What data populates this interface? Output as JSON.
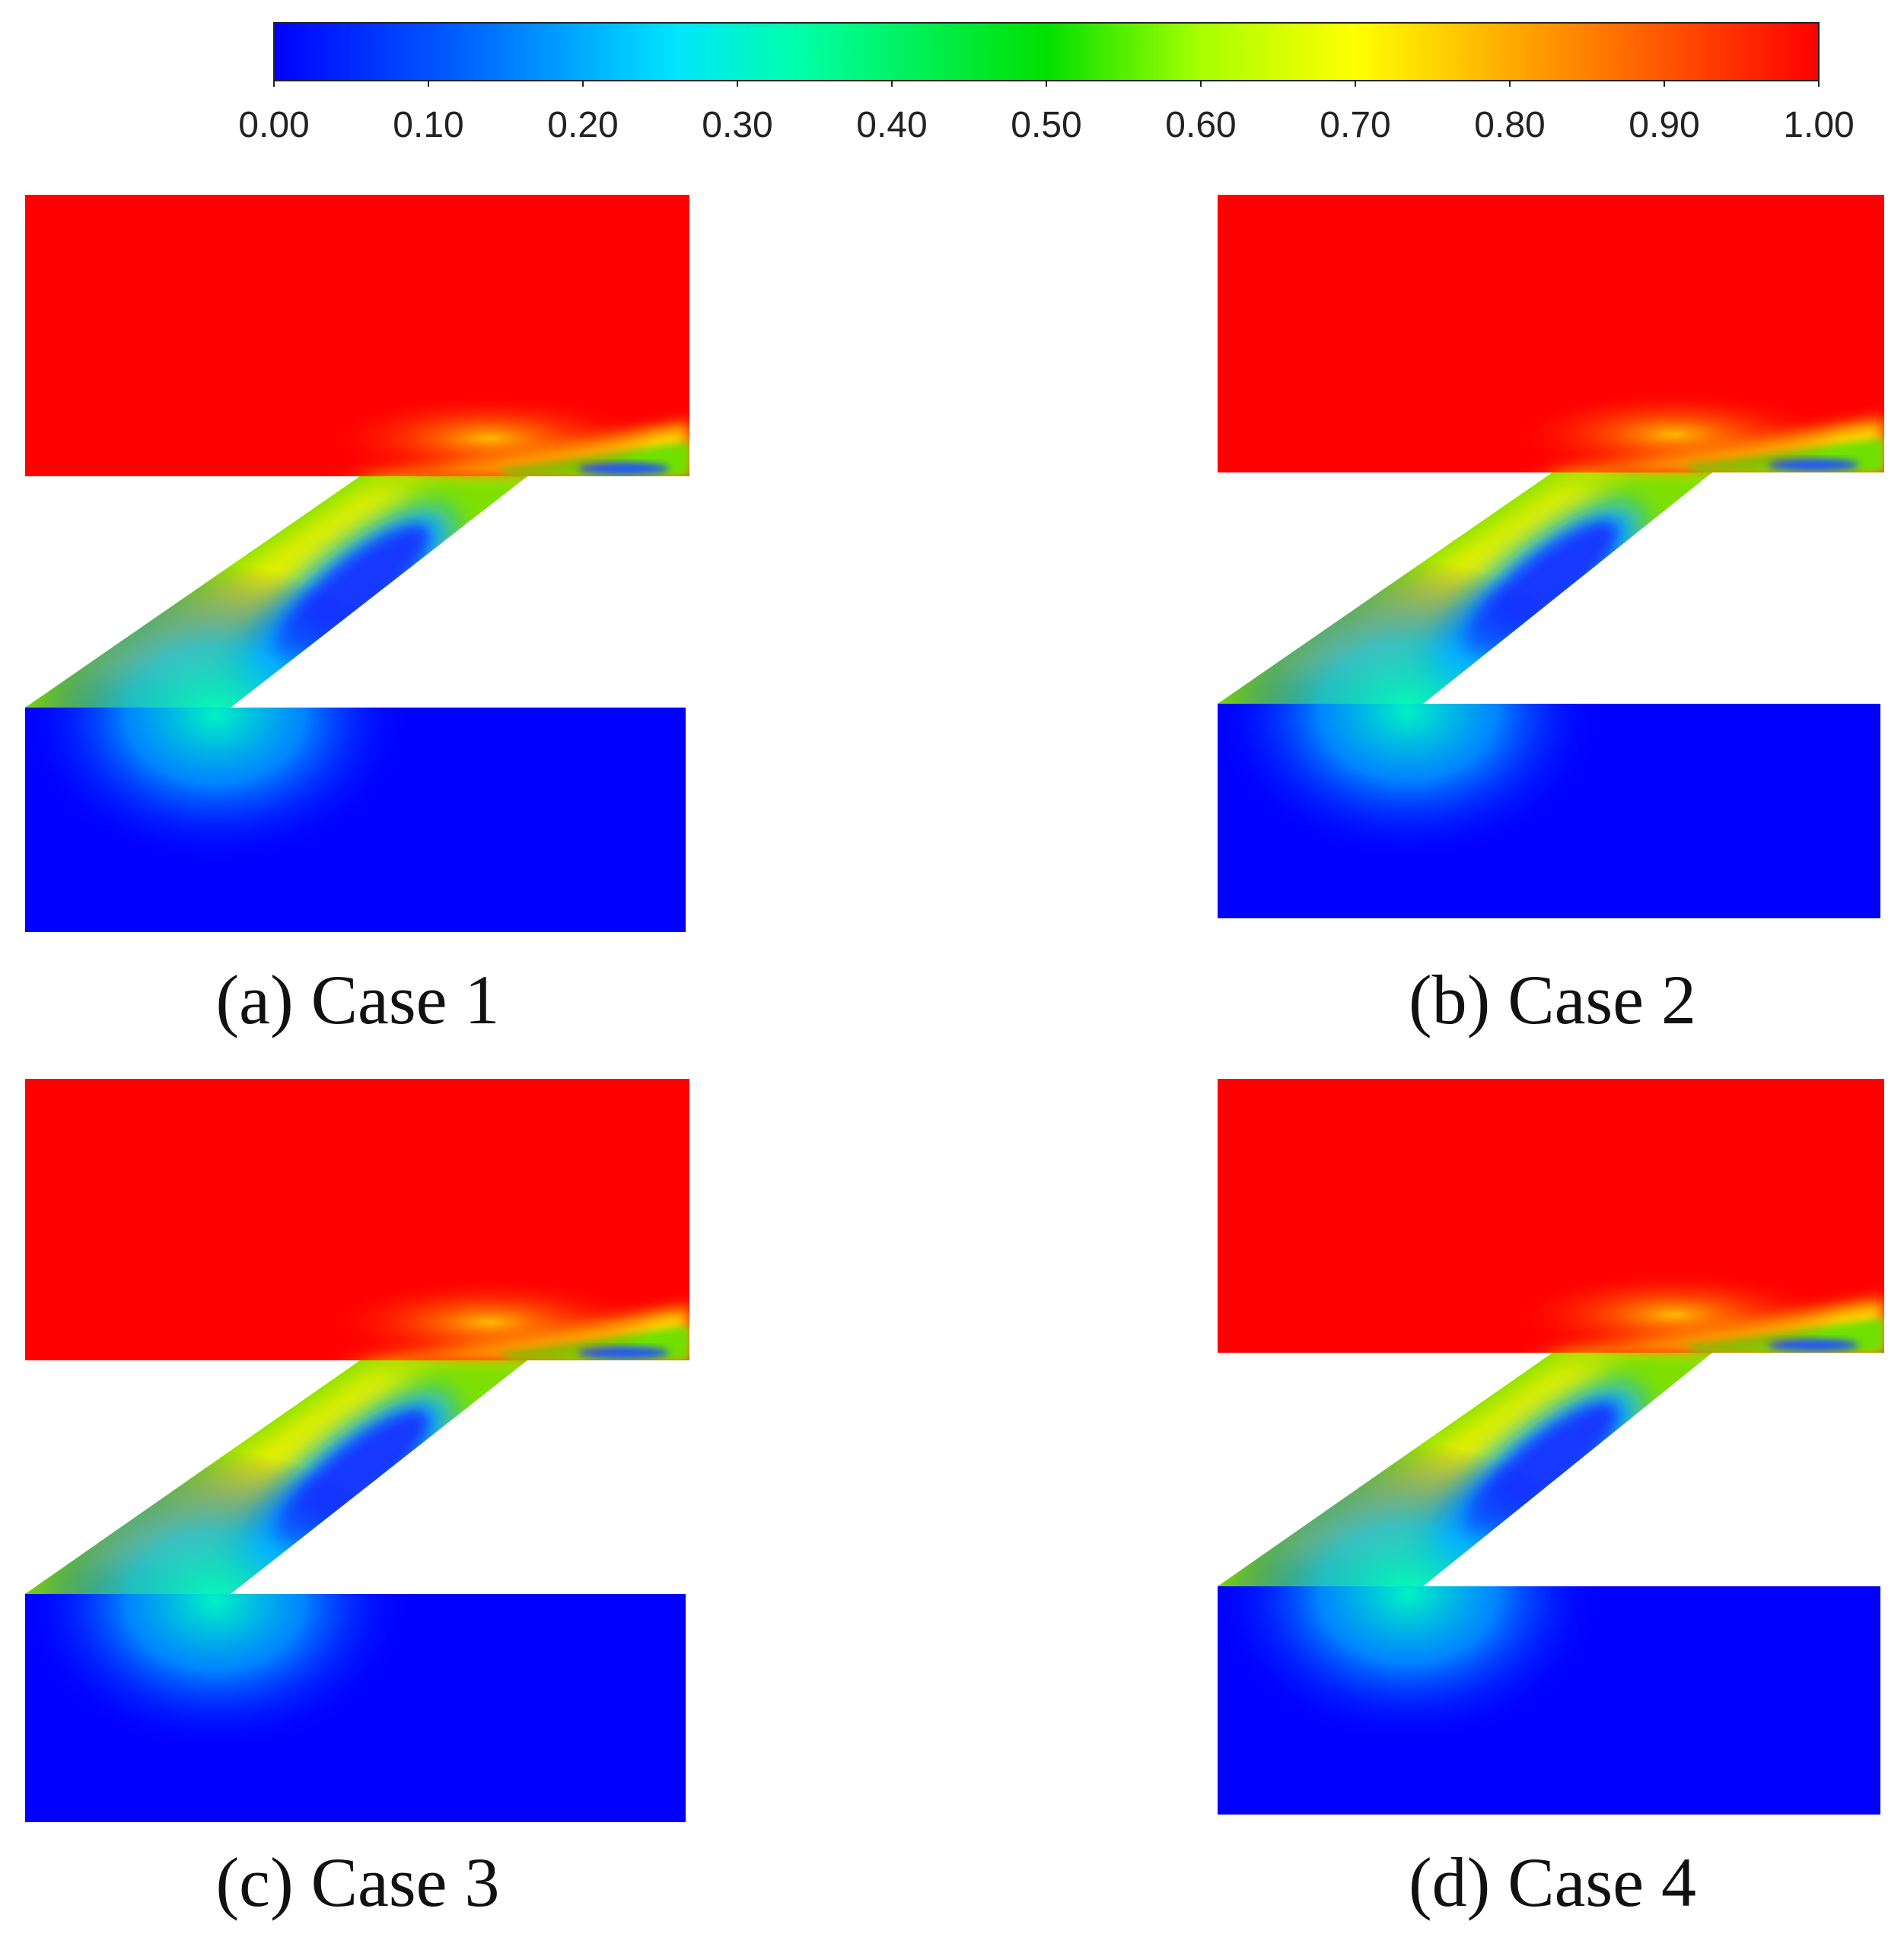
{
  "colorbar": {
    "min": 0.0,
    "max": 1.0,
    "stops": [
      {
        "offset": 0.0,
        "color": "#0000ff"
      },
      {
        "offset": 0.12,
        "color": "#0060ff"
      },
      {
        "offset": 0.26,
        "color": "#00e5ff"
      },
      {
        "offset": 0.34,
        "color": "#00ffa8"
      },
      {
        "offset": 0.5,
        "color": "#00e000"
      },
      {
        "offset": 0.6,
        "color": "#a8ff00"
      },
      {
        "offset": 0.7,
        "color": "#ffff00"
      },
      {
        "offset": 0.82,
        "color": "#ff9a00"
      },
      {
        "offset": 1.0,
        "color": "#ff0000"
      }
    ],
    "ticks": [
      "0.00",
      "0.10",
      "0.20",
      "0.30",
      "0.40",
      "0.50",
      "0.60",
      "0.70",
      "0.80",
      "0.90",
      "1.00"
    ]
  },
  "panels": [
    {
      "id": "a",
      "caption": "(a) Case 1"
    },
    {
      "id": "b",
      "caption": "(b) Case 2"
    },
    {
      "id": "c",
      "caption": "(c) Case 3"
    },
    {
      "id": "d",
      "caption": "(d) Case 4"
    }
  ],
  "colors": {
    "high": "#ff0000",
    "low": "#0000ff"
  }
}
